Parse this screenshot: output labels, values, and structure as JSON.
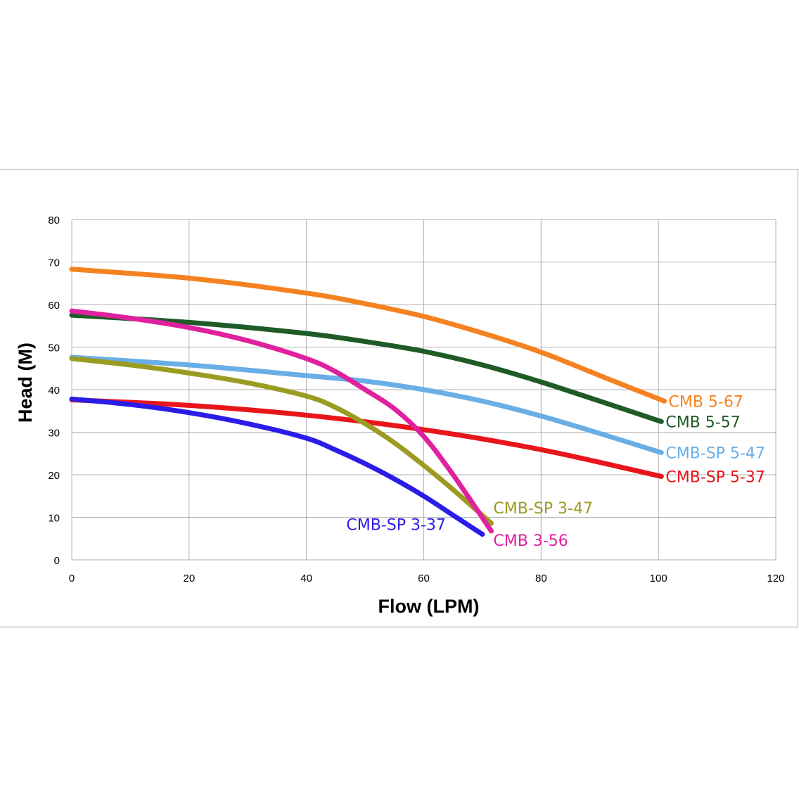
{
  "chart_data": {
    "type": "line",
    "title": "",
    "xlabel": "Flow (LPM)",
    "ylabel": "Head (M)",
    "xlim": [
      0,
      120
    ],
    "ylim": [
      0,
      80
    ],
    "xticks": [
      0,
      20,
      40,
      60,
      80,
      100,
      120
    ],
    "yticks": [
      0,
      10,
      20,
      30,
      40,
      50,
      60,
      70,
      80
    ],
    "grid": true,
    "legend": "inline labels at line ends",
    "series": [
      {
        "name": "CMB 5-67",
        "color": "#f58220",
        "anchor": "right",
        "x": [
          0,
          20,
          40,
          50,
          60,
          70,
          80,
          90,
          101
        ],
        "y": [
          68.3,
          66.2,
          62.7,
          60.2,
          57.2,
          53.3,
          48.8,
          43.3,
          37.3
        ]
      },
      {
        "name": "CMB 5-57",
        "color": "#1e5b26",
        "anchor": "right",
        "x": [
          0,
          20,
          40,
          50,
          60,
          70,
          80,
          90,
          100.5
        ],
        "y": [
          57.5,
          55.8,
          53.2,
          51.3,
          49.0,
          45.8,
          41.8,
          37.3,
          32.5
        ]
      },
      {
        "name": "CMB-SP 5-47",
        "color": "#6aaee6",
        "anchor": "right",
        "x": [
          0,
          20,
          40,
          50,
          60,
          70,
          80,
          90,
          100.5
        ],
        "y": [
          47.6,
          45.8,
          43.3,
          42.0,
          40.0,
          37.3,
          33.8,
          29.7,
          25.2
        ]
      },
      {
        "name": "CMB-SP 5-37",
        "color": "#e8161b",
        "anchor": "right",
        "x": [
          0,
          20,
          40,
          60,
          80,
          100.5
        ],
        "y": [
          37.6,
          36.3,
          34.0,
          30.6,
          25.9,
          19.6
        ]
      },
      {
        "name": "CMB-SP 3-47",
        "color": "#9b9b22",
        "anchor": "below-right",
        "x": [
          0,
          10,
          20,
          30,
          40,
          45,
          50,
          55,
          60,
          65,
          71.5
        ],
        "y": [
          47.3,
          45.8,
          43.9,
          41.6,
          38.5,
          35.8,
          32.0,
          27.5,
          22.2,
          16.5,
          8.6
        ]
      },
      {
        "name": "CMB 3-56",
        "color": "#e0219f",
        "anchor": "below-right",
        "x": [
          0,
          10,
          20,
          30,
          40,
          45,
          50,
          55,
          60,
          65,
          71.5
        ],
        "y": [
          58.5,
          56.8,
          54.6,
          51.5,
          47.3,
          44.2,
          40.0,
          35.5,
          29.0,
          20.0,
          6.8
        ]
      },
      {
        "name": "CMB-SP 3-37",
        "color": "#2b1ce8",
        "anchor": "left",
        "x": [
          0,
          10,
          20,
          30,
          40,
          45,
          50,
          55,
          60,
          65,
          70
        ],
        "y": [
          37.8,
          36.5,
          34.6,
          32.0,
          28.6,
          25.8,
          22.6,
          19.0,
          15.0,
          10.5,
          6.0
        ]
      }
    ]
  }
}
